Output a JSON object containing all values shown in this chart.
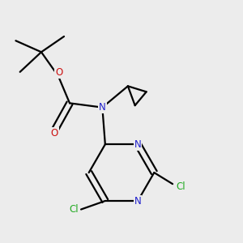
{
  "bg_color": "#ececec",
  "atom_colors": {
    "C": "#000000",
    "N": "#2020cc",
    "O": "#cc1111",
    "Cl": "#22aa22"
  },
  "bond_color": "#000000",
  "bond_width": 1.6,
  "font_size_atom": 8.5,
  "figsize": [
    3.0,
    3.0
  ],
  "dpi": 100,
  "xlim": [
    0.1,
    0.9
  ],
  "ylim": [
    0.08,
    0.92
  ]
}
